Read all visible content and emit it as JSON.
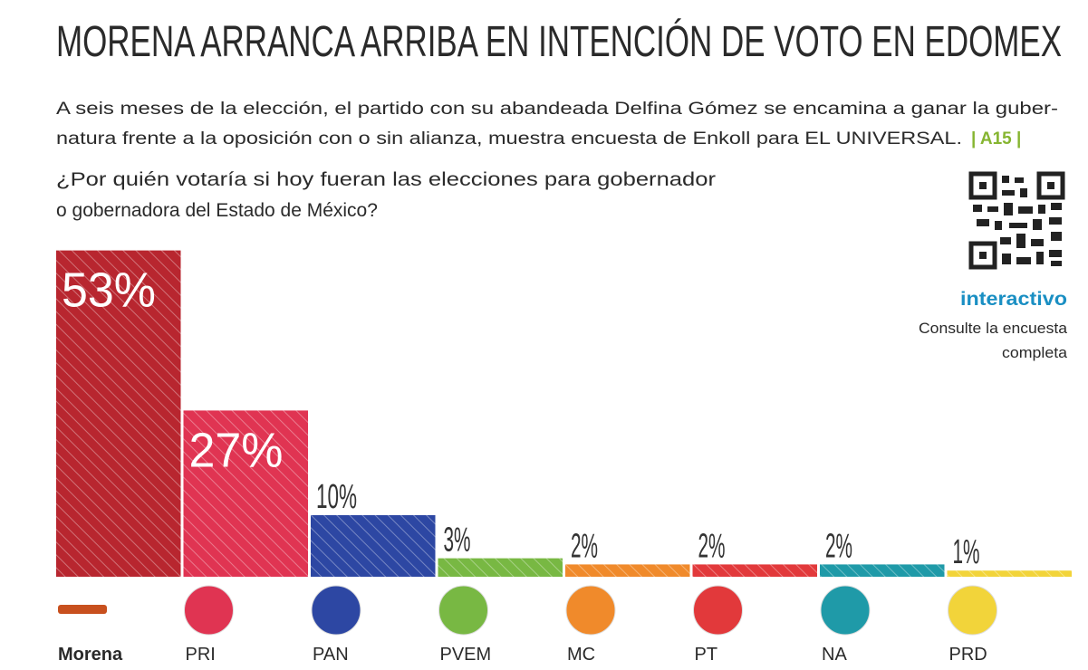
{
  "chart_data": {
    "type": "bar",
    "title": "MORENA ARRANCA ARRIBA EN INTENCIÓN DE VOTO EN EDOMEX",
    "subtitle": [
      "A seis meses de la elección, el partido con su abandeada Delfina Gómez se encamina a ganar la guber-",
      "natura frente a la oposición con o sin alianza, muestra encuesta de Enkoll para EL UNIVERSAL."
    ],
    "page_ref": "| A15 |",
    "question": [
      "¿Por quién votaría si hoy fueran las elecciones para gobernador",
      "o gobernadora del Estado de México?"
    ],
    "side_note": {
      "heading": "interactivo",
      "lines": [
        "Consulte la encuesta",
        "completa"
      ]
    },
    "categories": [
      "Morena",
      "PRI",
      "PAN",
      "PVEM",
      "MC",
      "PT",
      "NA",
      "PRD"
    ],
    "values": [
      53,
      27,
      10,
      3,
      2,
      2,
      2,
      1
    ],
    "value_labels": [
      "53%",
      "27%",
      "10%",
      "3%",
      "2%",
      "2%",
      "2%",
      "1%"
    ],
    "colors": [
      "#b8262f",
      "#e03452",
      "#2d47a3",
      "#78b843",
      "#f08a2b",
      "#e2393b",
      "#1f9aa8",
      "#f2d43a"
    ]
  }
}
